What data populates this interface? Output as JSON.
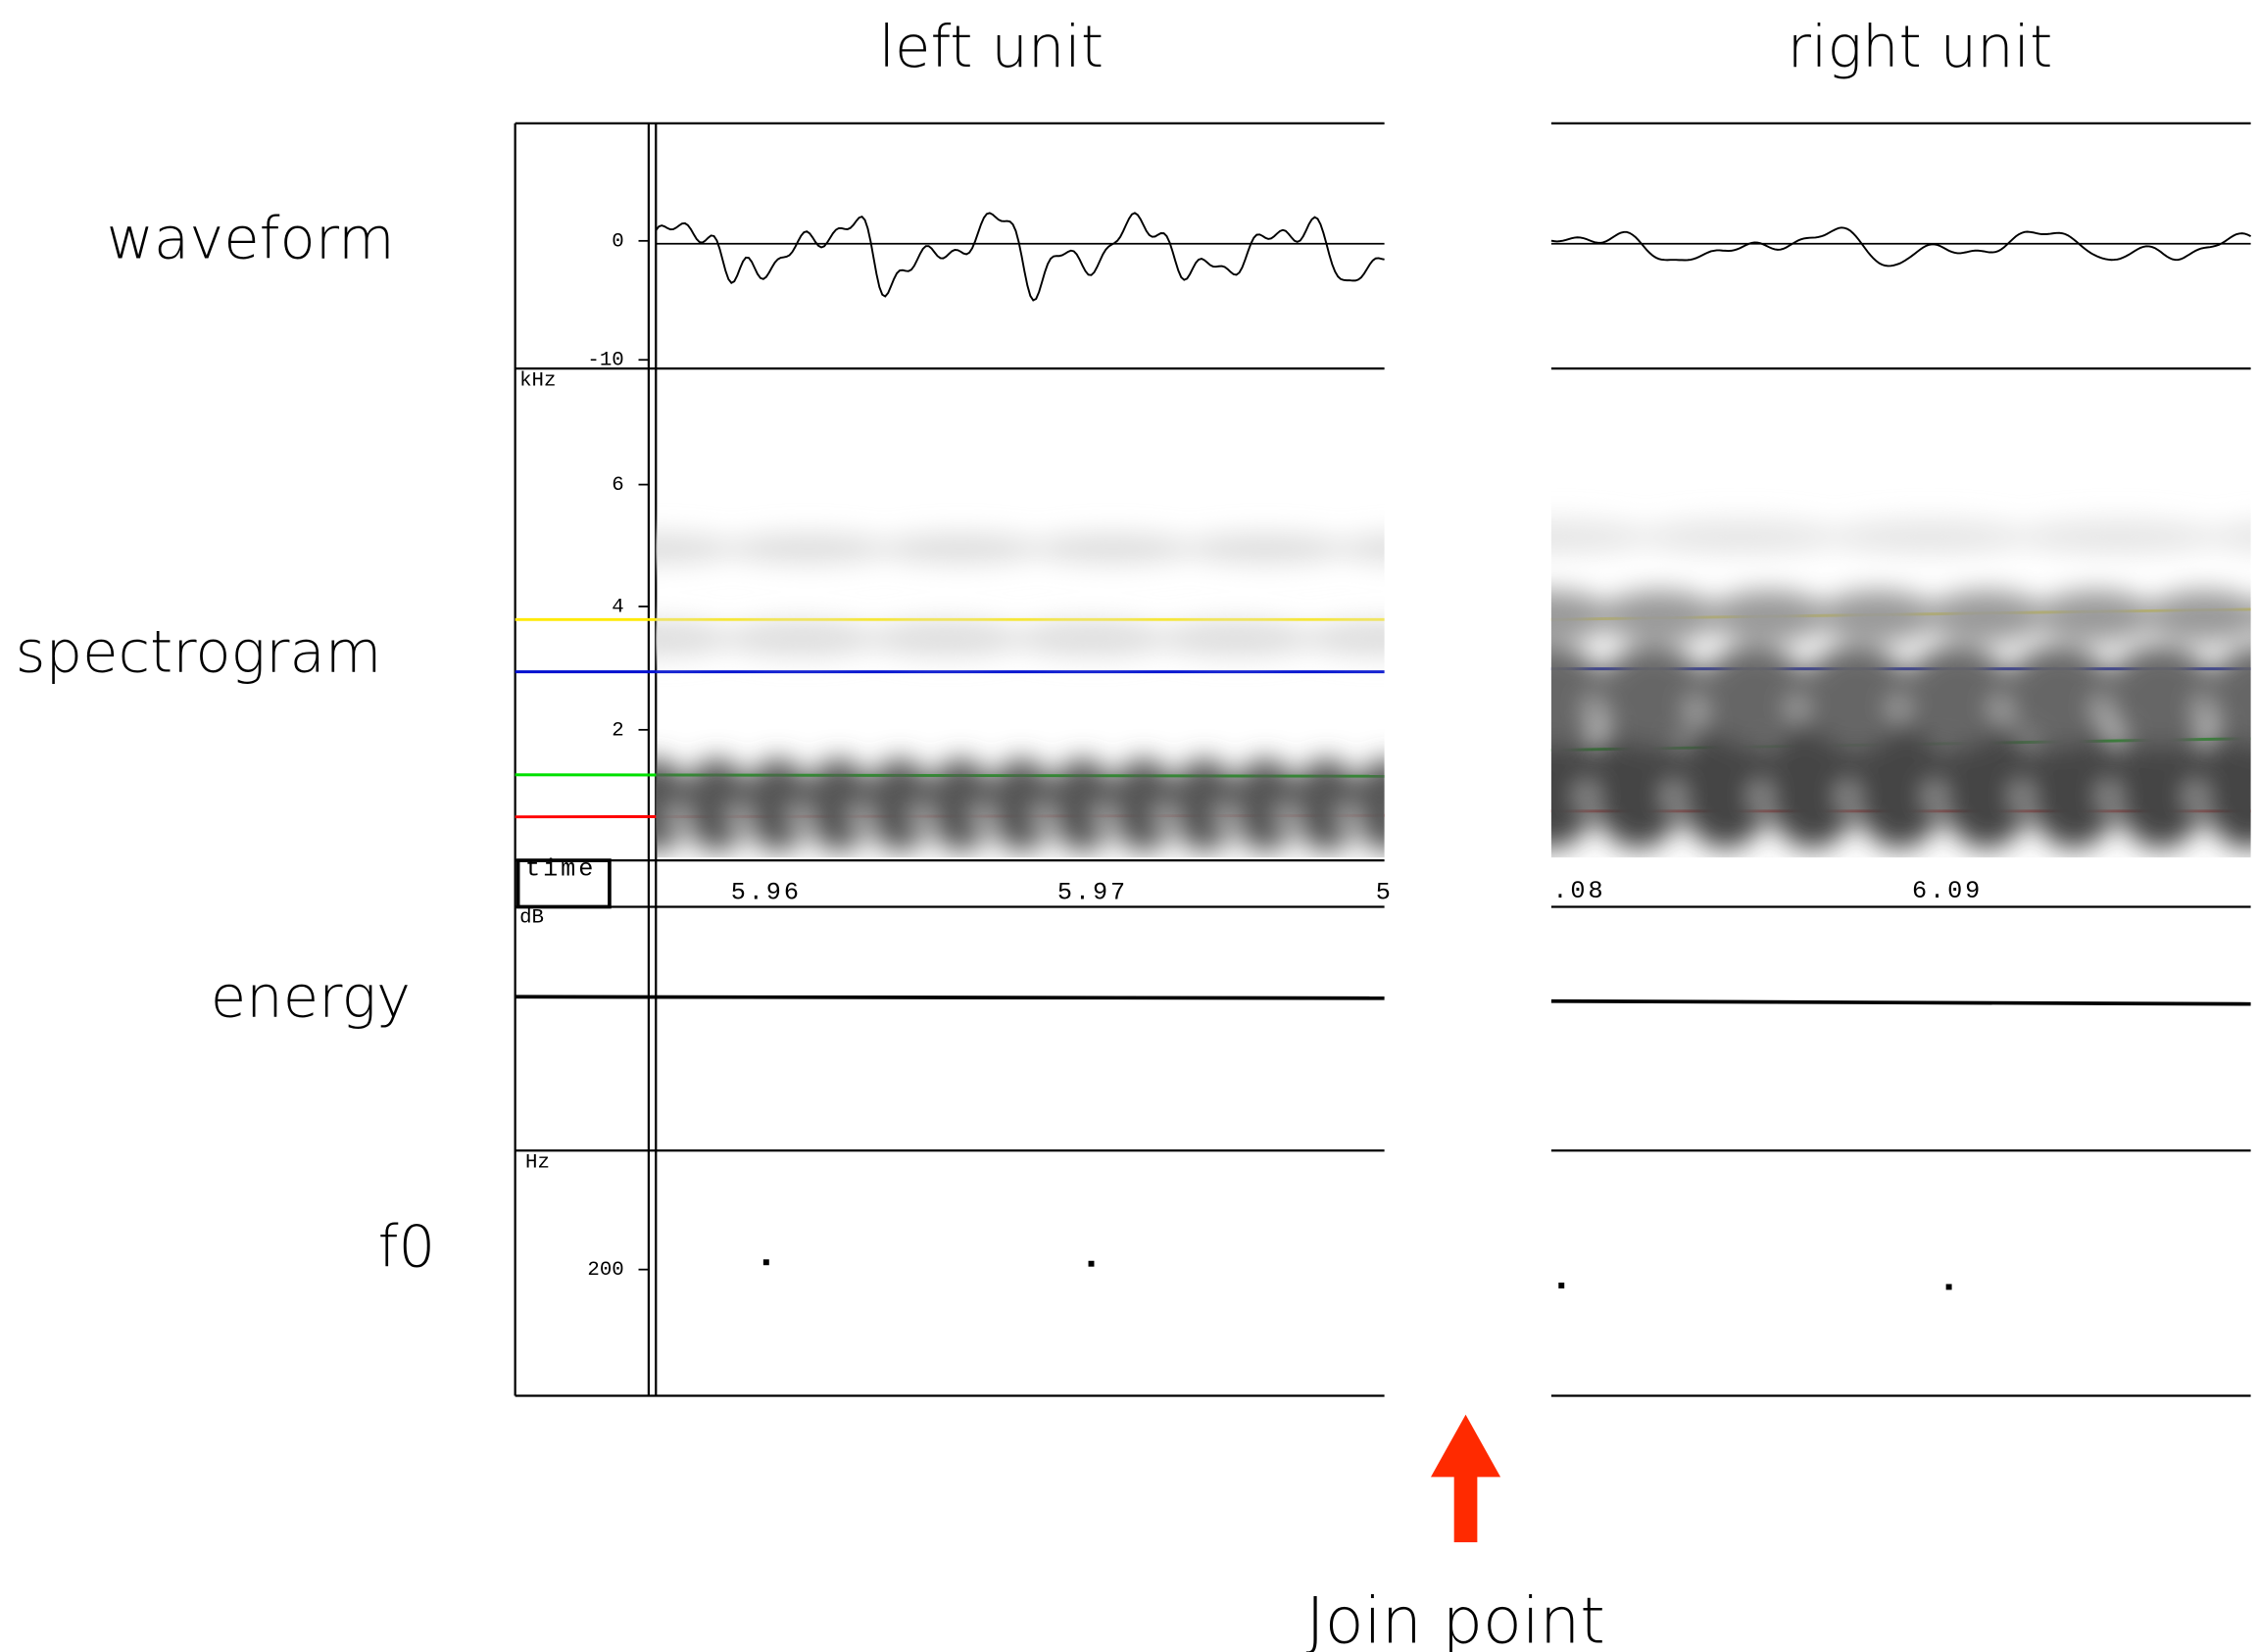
{
  "columns": {
    "left": "left unit",
    "right": "right unit"
  },
  "rows": [
    "waveform",
    "spectrogram",
    "energy",
    "f0"
  ],
  "waveform_axis": {
    "ticks": [
      "0",
      "-10"
    ]
  },
  "spectrogram_axis": {
    "unit": "kHz",
    "ticks": [
      "6",
      "4",
      "2"
    ]
  },
  "time_axis": {
    "label": "time",
    "left_ticks": [
      "5.96",
      "5.97",
      "5"
    ],
    "right_ticks": [
      ".08",
      "6.09"
    ]
  },
  "energy_axis": {
    "unit": "dB"
  },
  "f0_axis": {
    "unit": "Hz",
    "ticks": [
      "200"
    ]
  },
  "join_point": "Join point"
}
